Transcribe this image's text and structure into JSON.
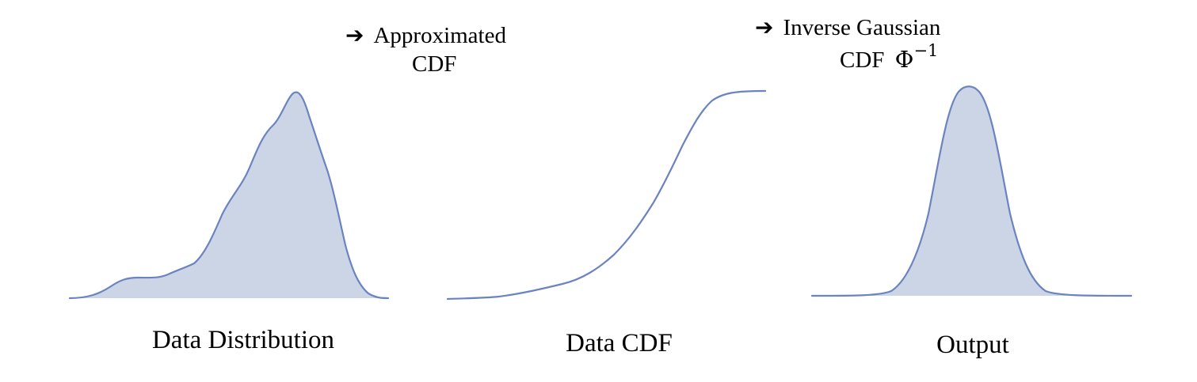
{
  "colors": {
    "fill": "#cbd5e6",
    "line": "#6b84bf"
  },
  "panels": [
    {
      "caption": "Data Distribution",
      "shape": "left-skewed-density",
      "filled": true
    },
    {
      "caption": "Data CDF",
      "shape": "cumulative-curve",
      "filled": false
    },
    {
      "caption": "Output",
      "shape": "gaussian-density",
      "filled": true
    }
  ],
  "steps": [
    {
      "arrow_icon": "right-arrow-icon",
      "line1": "Approximated",
      "line2": "CDF"
    },
    {
      "arrow_icon": "right-arrow-icon",
      "line1": "Inverse Gaussian",
      "line2_prefix": "CDF",
      "line2_math": "Φ",
      "line2_sup": "−1"
    }
  ]
}
